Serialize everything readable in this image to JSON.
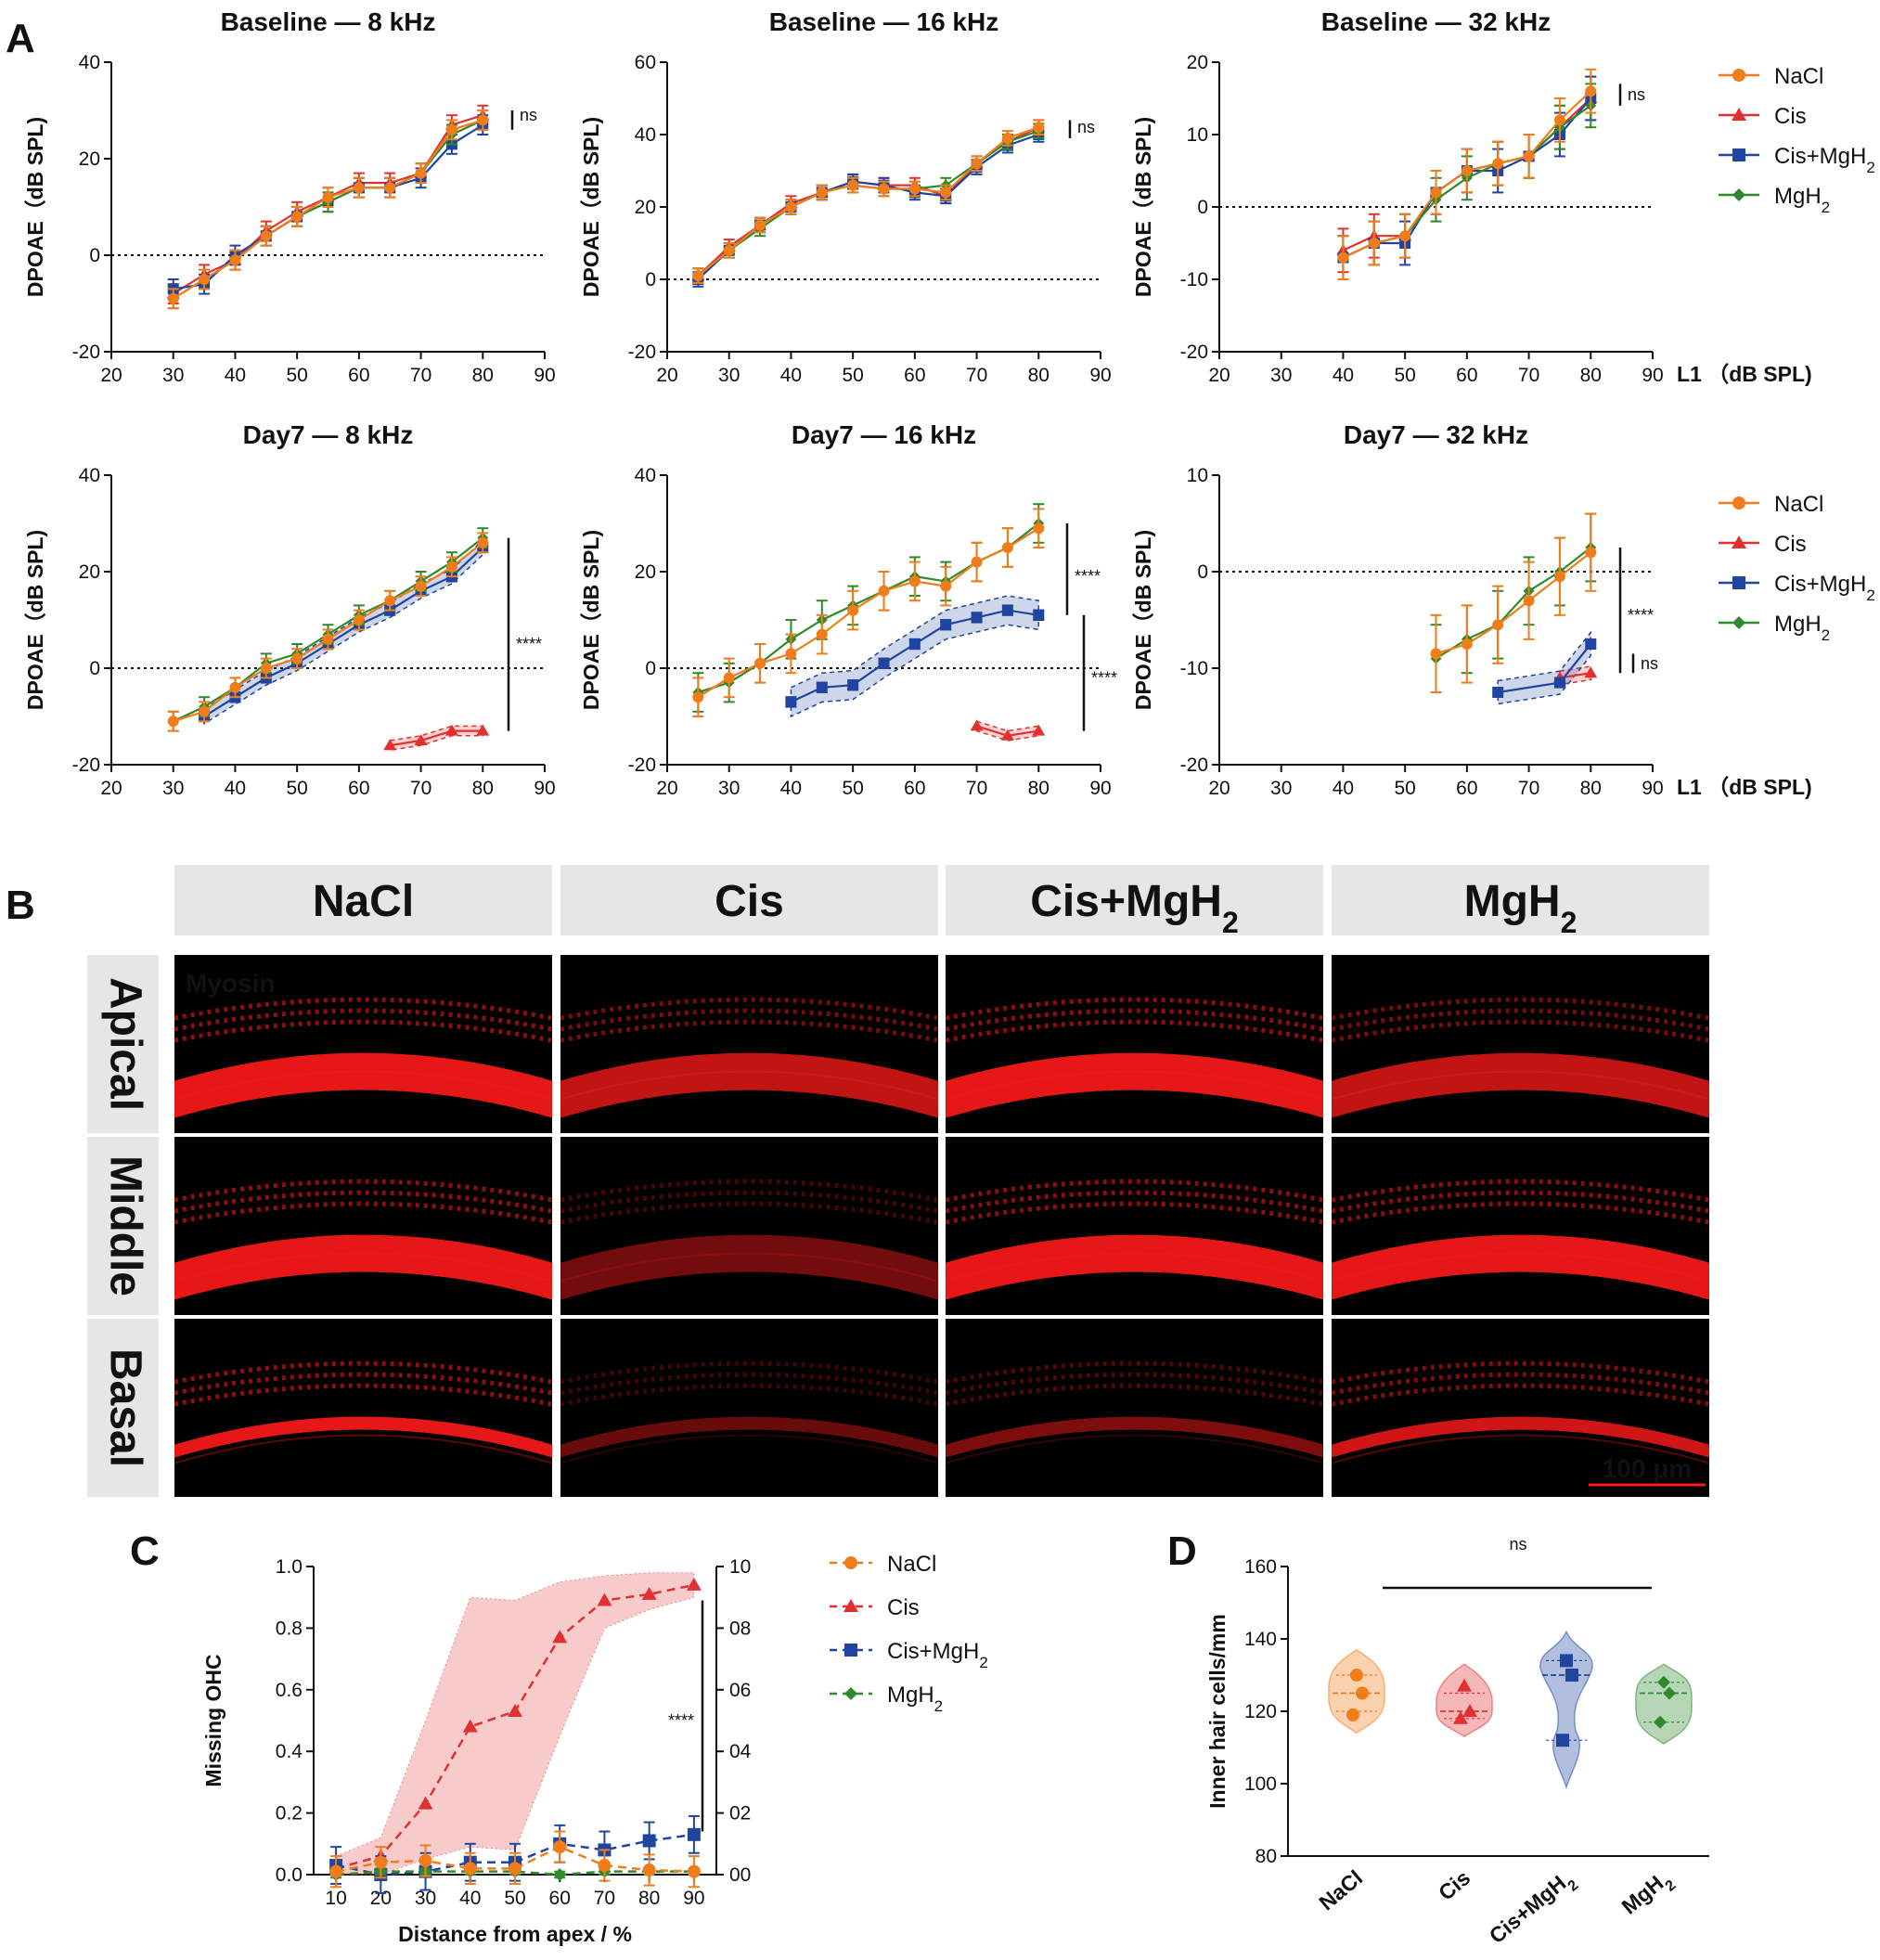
{
  "panel_labels": {
    "a": "A",
    "b": "B",
    "c": "C",
    "d": "D"
  },
  "colors": {
    "NaCl": "#f07d19",
    "Cis": "#e23030",
    "Cis+MgH2": "#1f45a0",
    "MgH2": "#2e8a2c",
    "tissue": "#ff1a1a",
    "tissue_bg": "#000000"
  },
  "legend": {
    "series_main": [
      "NaCl",
      "Cis",
      "Cis+MgH",
      "MgH"
    ],
    "subscript": "2"
  },
  "chart_data": [
    {
      "id": "A_base_8",
      "type": "line",
      "title": "Baseline — 8 kHz",
      "xlabel": "",
      "ylabel": "DPOAE（dB SPL)",
      "xlim": [
        20,
        90
      ],
      "ylim": [
        -20,
        40
      ],
      "xticks": [
        20,
        30,
        40,
        50,
        60,
        70,
        80,
        90
      ],
      "yticks": [
        -20,
        0,
        20,
        40
      ],
      "annotation": "ns",
      "series": [
        {
          "name": "NaCl",
          "x": [
            30,
            35,
            40,
            45,
            50,
            55,
            60,
            65,
            70,
            75,
            80
          ],
          "y": [
            -9,
            -5,
            -1,
            4,
            8,
            12,
            14,
            14,
            17,
            26,
            28
          ],
          "err": 2
        },
        {
          "name": "Cis",
          "x": [
            30,
            35,
            40,
            45,
            50,
            55,
            60,
            65,
            70,
            75,
            80
          ],
          "y": [
            -8,
            -4,
            -1,
            5,
            9,
            12,
            15,
            15,
            17,
            27,
            29
          ],
          "err": 2
        },
        {
          "name": "Cis+MgH2",
          "x": [
            30,
            35,
            40,
            45,
            50,
            55,
            60,
            65,
            70,
            75,
            80
          ],
          "y": [
            -7,
            -6,
            0,
            4,
            8,
            11,
            14,
            14,
            16,
            23,
            27
          ],
          "err": 2
        },
        {
          "name": "MgH2",
          "x": [
            30,
            35,
            40,
            45,
            50,
            55,
            60,
            65,
            70,
            75,
            80
          ],
          "y": [
            -9,
            -5,
            -1,
            4,
            8,
            11,
            14,
            14,
            17,
            25,
            28
          ],
          "err": 2
        }
      ]
    },
    {
      "id": "A_base_16",
      "type": "line",
      "title": "Baseline — 16 kHz",
      "xlabel": "",
      "ylabel": "DPOAE（dB SPL)",
      "xlim": [
        20,
        90
      ],
      "ylim": [
        -20,
        60
      ],
      "xticks": [
        20,
        30,
        40,
        50,
        60,
        70,
        80,
        90
      ],
      "yticks": [
        -20,
        0,
        20,
        40,
        60
      ],
      "annotation": "ns",
      "series": [
        {
          "name": "NaCl",
          "x": [
            25,
            30,
            35,
            40,
            45,
            50,
            55,
            60,
            65,
            70,
            75,
            80
          ],
          "y": [
            1,
            8,
            15,
            20,
            24,
            26,
            25,
            25,
            24,
            32,
            39,
            42
          ],
          "err": 2
        },
        {
          "name": "Cis",
          "x": [
            25,
            30,
            35,
            40,
            45,
            50,
            55,
            60,
            65,
            70,
            75,
            80
          ],
          "y": [
            1,
            9,
            15,
            21,
            24,
            27,
            26,
            26,
            23,
            32,
            38,
            42
          ],
          "err": 2
        },
        {
          "name": "Cis+MgH2",
          "x": [
            25,
            30,
            35,
            40,
            45,
            50,
            55,
            60,
            65,
            70,
            75,
            80
          ],
          "y": [
            0,
            8,
            15,
            20,
            24,
            27,
            26,
            24,
            23,
            31,
            37,
            40
          ],
          "err": 2
        },
        {
          "name": "MgH2",
          "x": [
            25,
            30,
            35,
            40,
            45,
            50,
            55,
            60,
            65,
            70,
            75,
            80
          ],
          "y": [
            1,
            8,
            14,
            20,
            24,
            26,
            25,
            25,
            26,
            32,
            38,
            41
          ],
          "err": 2
        }
      ]
    },
    {
      "id": "A_base_32",
      "type": "line",
      "title": "Baseline — 32 kHz",
      "xlabel": "L1 （dB SPL)",
      "ylabel": "DPOAE（dB SPL)",
      "xlim": [
        20,
        90
      ],
      "ylim": [
        -20,
        20
      ],
      "xticks": [
        20,
        30,
        40,
        50,
        60,
        70,
        80,
        90
      ],
      "yticks": [
        -20,
        -10,
        0,
        10,
        20
      ],
      "annotation": "ns",
      "series": [
        {
          "name": "NaCl",
          "x": [
            40,
            45,
            50,
            55,
            60,
            65,
            70,
            75,
            80
          ],
          "y": [
            -7,
            -5,
            -4,
            2,
            5,
            6,
            7,
            12,
            16
          ],
          "err": 3
        },
        {
          "name": "Cis",
          "x": [
            40,
            45,
            50,
            55,
            60,
            65,
            70,
            75,
            80
          ],
          "y": [
            -6,
            -4,
            -4,
            2,
            5,
            6,
            7,
            11,
            15
          ],
          "err": 3
        },
        {
          "name": "Cis+MgH2",
          "x": [
            40,
            45,
            50,
            55,
            60,
            65,
            70,
            75,
            80
          ],
          "y": [
            -7,
            -5,
            -5,
            2,
            5,
            5,
            7,
            10,
            15
          ],
          "err": 3
        },
        {
          "name": "MgH2",
          "x": [
            40,
            45,
            50,
            55,
            60,
            65,
            70,
            75,
            80
          ],
          "y": [
            -7,
            -5,
            -4,
            1,
            4,
            6,
            7,
            11,
            14
          ],
          "err": 3
        }
      ]
    },
    {
      "id": "A_d7_8",
      "type": "line",
      "title": "Day7 — 8 kHz",
      "xlabel": "",
      "ylabel": "DPOAE（dB SPL)",
      "xlim": [
        20,
        90
      ],
      "ylim": [
        -20,
        40
      ],
      "xticks": [
        20,
        30,
        40,
        50,
        60,
        70,
        80,
        90
      ],
      "yticks": [
        -20,
        0,
        20,
        40
      ],
      "annotation": "****",
      "series": [
        {
          "name": "NaCl",
          "x": [
            30,
            35,
            40,
            45,
            50,
            55,
            60,
            65,
            70,
            75,
            80
          ],
          "y": [
            -11,
            -9,
            -4,
            0,
            2,
            6,
            10,
            14,
            17,
            21,
            26
          ],
          "err": 2
        },
        {
          "name": "Cis",
          "x": [
            65,
            70,
            75,
            80
          ],
          "y": [
            -16,
            -15,
            -13,
            -13
          ],
          "err": 0,
          "band": 1
        },
        {
          "name": "Cis+MgH2",
          "x": [
            35,
            40,
            45,
            50,
            55,
            60,
            65,
            70,
            75,
            80
          ],
          "y": [
            -10,
            -6,
            -2,
            1,
            5,
            9,
            12,
            16,
            19,
            25
          ],
          "err": 1,
          "band": 1.5
        },
        {
          "name": "MgH2",
          "x": [
            30,
            35,
            40,
            45,
            50,
            55,
            60,
            65,
            70,
            75,
            80
          ],
          "y": [
            -11,
            -8,
            -4,
            1,
            3,
            7,
            11,
            14,
            18,
            22,
            27
          ],
          "err": 2
        }
      ]
    },
    {
      "id": "A_d7_16",
      "type": "line",
      "title": "Day7 — 16 kHz",
      "xlabel": "",
      "ylabel": "DPOAE（dB SPL)",
      "xlim": [
        20,
        90
      ],
      "ylim": [
        -20,
        40
      ],
      "xticks": [
        20,
        30,
        40,
        50,
        60,
        70,
        80,
        90
      ],
      "yticks": [
        -20,
        0,
        20,
        40
      ],
      "annotation": "****",
      "annotation2": "****",
      "series": [
        {
          "name": "NaCl",
          "x": [
            25,
            30,
            35,
            40,
            45,
            50,
            55,
            60,
            65,
            70,
            75,
            80
          ],
          "y": [
            -6,
            -2,
            1,
            3,
            7,
            12,
            16,
            18,
            17,
            22,
            25,
            29
          ],
          "err": 4
        },
        {
          "name": "Cis",
          "x": [
            70,
            75,
            80
          ],
          "y": [
            -12,
            -14,
            -13
          ],
          "err": 0,
          "band": 1
        },
        {
          "name": "Cis+MgH2",
          "x": [
            40,
            45,
            50,
            55,
            60,
            65,
            70,
            75,
            80
          ],
          "y": [
            -7,
            -4,
            -3.5,
            1,
            5,
            9,
            10.5,
            12,
            11
          ],
          "err": 1,
          "band": 3
        },
        {
          "name": "MgH2",
          "x": [
            25,
            30,
            35,
            40,
            45,
            50,
            55,
            60,
            65,
            70,
            75,
            80
          ],
          "y": [
            -5,
            -3,
            1,
            6,
            10,
            13,
            16,
            19,
            18,
            22,
            25,
            30
          ],
          "err": 4
        }
      ]
    },
    {
      "id": "A_d7_32",
      "type": "line",
      "title": "Day7 — 32 kHz",
      "xlabel": "L1 （dB SPL)",
      "ylabel": "DPOAE（dB SPL)",
      "xlim": [
        20,
        90
      ],
      "ylim": [
        -20,
        10
      ],
      "xticks": [
        20,
        30,
        40,
        50,
        60,
        70,
        80,
        90
      ],
      "yticks": [
        -20,
        -10,
        0,
        10
      ],
      "annotation": "****",
      "annotation2": "ns",
      "series": [
        {
          "name": "NaCl",
          "x": [
            55,
            60,
            65,
            70,
            75,
            80
          ],
          "y": [
            -8.5,
            -7.5,
            -5.5,
            -3,
            -0.5,
            2
          ],
          "err": 4
        },
        {
          "name": "Cis",
          "x": [
            75,
            80
          ],
          "y": [
            -11,
            -10.5
          ],
          "err": 0,
          "band": 0.7
        },
        {
          "name": "Cis+MgH2",
          "x": [
            65,
            75,
            80
          ],
          "y": [
            -12.5,
            -11.5,
            -7.5
          ],
          "err": 0,
          "band": 1.2
        },
        {
          "name": "MgH2",
          "x": [
            55,
            60,
            65,
            70,
            75,
            80
          ],
          "y": [
            -9,
            -7,
            -5.5,
            -2,
            0,
            2.5
          ],
          "err": 3.5
        }
      ]
    },
    {
      "id": "C",
      "type": "line",
      "title": "",
      "xlabel": "Distance from apex / %",
      "ylabel": "Missing OHC",
      "xlim": [
        5,
        95
      ],
      "ylim": [
        0,
        1.0
      ],
      "xticks": [
        10,
        20,
        30,
        40,
        50,
        60,
        70,
        80,
        90
      ],
      "yticks": [
        0.0,
        0.2,
        0.4,
        0.6,
        0.8,
        1.0
      ],
      "ytick_labels": [
        "0.0",
        "0.2",
        "0.4",
        "0.6",
        "0.8",
        "1.0"
      ],
      "y2tick_labels": [
        "00",
        "02",
        "04",
        "06",
        "08",
        "10"
      ],
      "annotation": "****",
      "series": [
        {
          "name": "NaCl",
          "x": [
            10,
            20,
            30,
            40,
            50,
            60,
            70,
            80,
            90
          ],
          "y": [
            0.01,
            0.04,
            0.045,
            0.02,
            0.02,
            0.09,
            0.03,
            0.015,
            0.01
          ],
          "err": 0.05
        },
        {
          "name": "Cis",
          "x": [
            10,
            20,
            30,
            40,
            50,
            60,
            70,
            80,
            90
          ],
          "y": [
            0.02,
            0.06,
            0.23,
            0.48,
            0.53,
            0.77,
            0.89,
            0.91,
            0.94
          ],
          "band_lo": [
            0.0,
            0.0,
            0.05,
            0.09,
            0.08,
            0.45,
            0.8,
            0.86,
            0.9
          ],
          "band_hi": [
            0.06,
            0.12,
            0.5,
            0.9,
            0.89,
            0.95,
            0.97,
            0.98,
            0.98
          ]
        },
        {
          "name": "Cis+MgH2",
          "x": [
            10,
            20,
            30,
            40,
            50,
            60,
            70,
            80,
            90
          ],
          "y": [
            0.03,
            0.0,
            0.01,
            0.04,
            0.04,
            0.1,
            0.08,
            0.11,
            0.13
          ],
          "err": 0.06
        },
        {
          "name": "MgH2",
          "x": [
            10,
            20,
            30,
            40,
            50,
            60,
            70,
            80,
            90
          ],
          "y": [
            0.0,
            0.01,
            0.01,
            0.01,
            0.01,
            0.0,
            0.01,
            0.01,
            0.01
          ],
          "err": 0.01
        }
      ]
    },
    {
      "id": "D",
      "type": "violin",
      "title": "",
      "xlabel": "",
      "ylabel": "Inner hair cells/mm",
      "ylim": [
        80,
        160
      ],
      "yticks": [
        80,
        100,
        120,
        140,
        160
      ],
      "categories": [
        "NaCl",
        "Cis",
        "Cis+MgH",
        "MgH"
      ],
      "annotation": "ns",
      "series": [
        {
          "name": "NaCl",
          "points": [
            130,
            125,
            119
          ],
          "median": 125,
          "q1": 120,
          "q3": 130,
          "min": 114,
          "max": 137
        },
        {
          "name": "Cis",
          "points": [
            127,
            120,
            118
          ],
          "median": 120,
          "q1": 118,
          "q3": 125,
          "min": 113,
          "max": 133
        },
        {
          "name": "Cis+MgH2",
          "points": [
            134,
            130,
            112
          ],
          "median": 130,
          "q1": 112,
          "q3": 134,
          "min": 99,
          "max": 142
        },
        {
          "name": "MgH2",
          "points": [
            128,
            125,
            117
          ],
          "median": 125,
          "q1": 117,
          "q3": 128,
          "min": 111,
          "max": 133
        }
      ]
    }
  ],
  "panel_b": {
    "columns": [
      "NaCl",
      "Cis",
      "Cis+MgH",
      "MgH"
    ],
    "rows": [
      "Apical",
      "Middle",
      "Basal"
    ],
    "stain_label": "Myosin",
    "scale_bar": "100 μm"
  }
}
